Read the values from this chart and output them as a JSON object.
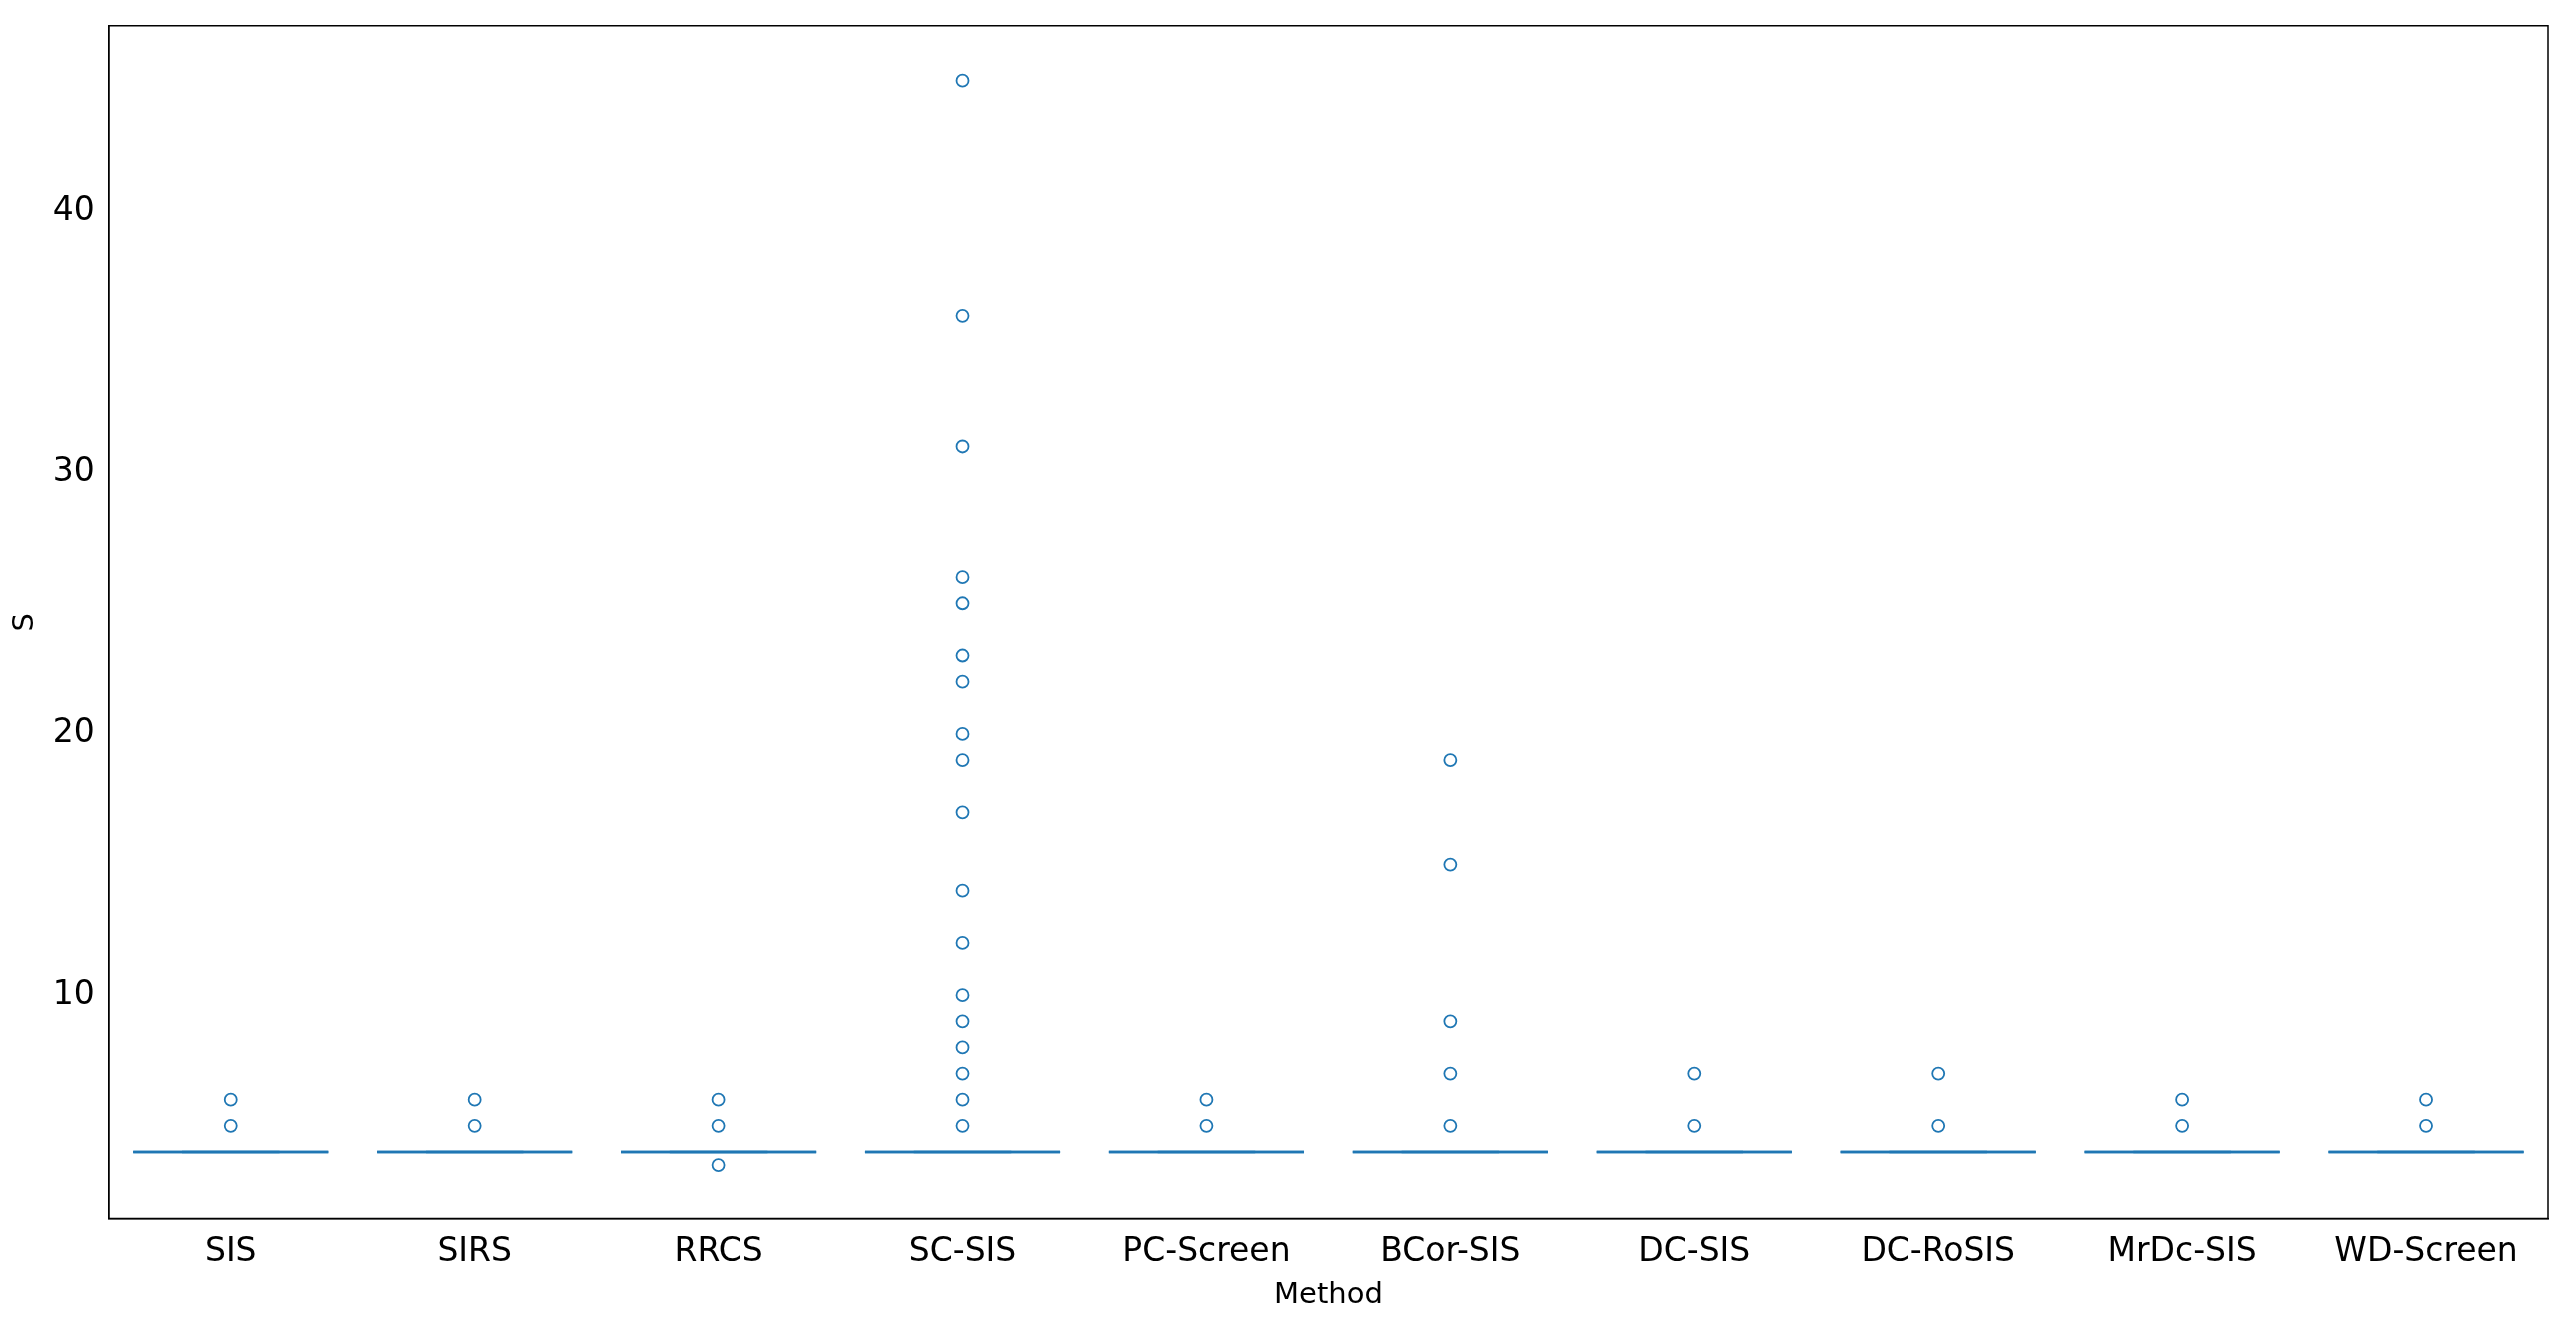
{
  "chart_data": {
    "type": "box",
    "xlabel": "Method",
    "ylabel": "S",
    "color": "#1f77b4",
    "categories": [
      "SIS",
      "SIRS",
      "RRCS",
      "SC-SIS",
      "PC-Screen",
      "BCor-SIS",
      "DC-SIS",
      "DC-RoSIS",
      "MrDc-SIS",
      "WD-Screen"
    ],
    "boxes": [
      {
        "low": 4,
        "q1": 4,
        "median": 4,
        "q3": 4,
        "high": 4,
        "outliers": [
          5,
          6
        ]
      },
      {
        "low": 4,
        "q1": 4,
        "median": 4,
        "q3": 4,
        "high": 4,
        "outliers": [
          5,
          6
        ]
      },
      {
        "low": 4,
        "q1": 4,
        "median": 4,
        "q3": 4,
        "high": 4,
        "outliers": [
          3.5,
          5,
          6
        ]
      },
      {
        "low": 4,
        "q1": 4,
        "median": 4,
        "q3": 4,
        "high": 4,
        "outliers": [
          5,
          6,
          7,
          8,
          9,
          10,
          12,
          14,
          17,
          19,
          20,
          22,
          23,
          25,
          26,
          31,
          36,
          45
        ]
      },
      {
        "low": 4,
        "q1": 4,
        "median": 4,
        "q3": 4,
        "high": 4,
        "outliers": [
          5,
          6
        ]
      },
      {
        "low": 4,
        "q1": 4,
        "median": 4,
        "q3": 4,
        "high": 4,
        "outliers": [
          5,
          7,
          9,
          15,
          19
        ]
      },
      {
        "low": 4,
        "q1": 4,
        "median": 4,
        "q3": 4,
        "high": 4,
        "outliers": [
          5,
          7
        ]
      },
      {
        "low": 4,
        "q1": 4,
        "median": 4,
        "q3": 4,
        "high": 4,
        "outliers": [
          5,
          7
        ]
      },
      {
        "low": 4,
        "q1": 4,
        "median": 4,
        "q3": 4,
        "high": 4,
        "outliers": [
          5,
          6
        ]
      },
      {
        "low": 4,
        "q1": 4,
        "median": 4,
        "q3": 4,
        "high": 4,
        "outliers": [
          5,
          6
        ]
      }
    ],
    "ylim": [
      1.45,
      47.1
    ],
    "yticks": [
      10,
      20,
      30,
      40
    ]
  }
}
